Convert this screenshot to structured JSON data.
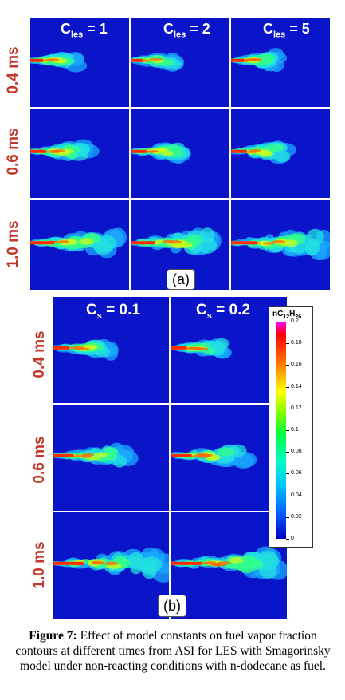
{
  "figure_a": {
    "columns": [
      {
        "base": "C",
        "sub": "les",
        "value": " = 1"
      },
      {
        "base": "C",
        "sub": "les",
        "value": " = 2"
      },
      {
        "base": "C",
        "sub": "les",
        "value": " = 5"
      }
    ],
    "rows": [
      "0.4 ms",
      "0.6 ms",
      "1.0 ms"
    ],
    "tag": "(a)"
  },
  "figure_b": {
    "columns": [
      {
        "base": "C",
        "sub": "s",
        "value": " = 0.1"
      },
      {
        "base": "C",
        "sub": "s",
        "value": " = 0.2"
      }
    ],
    "rows": [
      "0.4 ms",
      "0.6 ms",
      "1.0 ms"
    ],
    "tag": "(b)"
  },
  "colorbar": {
    "title_parts": [
      "nC",
      "12",
      "H",
      "26"
    ],
    "ticks": [
      "0.2",
      "0.18",
      "0.16",
      "0.14",
      "0.12",
      "0.1",
      "0.08",
      "0.06",
      "0.04",
      "0.02",
      "0"
    ]
  },
  "caption": {
    "label": "Figure 7:",
    "text": " Effect of model constants on fuel vapor fraction contours at different times from ASI for LES with Smagorinsky model under non-reacting conditions with n-dodecane as fuel."
  },
  "colors": {
    "panel_bg": "#0a14c8",
    "row_label": "#c0392b"
  }
}
